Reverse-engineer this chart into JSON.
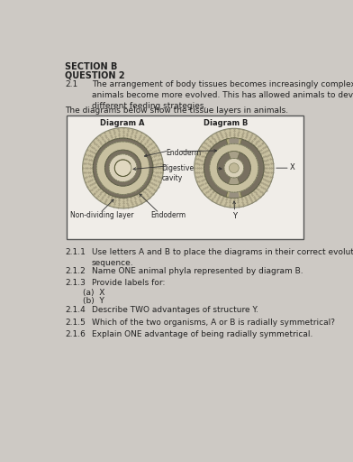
{
  "bg_color": "#cdc9c4",
  "box_color": "#f0ede8",
  "title_section": "SECTION B",
  "title_question": "QUESTION 2",
  "q21_num": "2.1",
  "q21_text": "The arrangement of body tissues becomes increasingly complex as\nanimals become more evolved. This has allowed animals to develop\ndifferent feeding strategies.",
  "q21_sub": "The diagrams below show the tissue layers in animals.",
  "diag_A_label": "Diagram A",
  "diag_B_label": "Diagram B",
  "label_endoderm_top": "Endoderm",
  "label_digestive": "Digestive\ncavity",
  "label_non_dividing": "Non-dividing layer",
  "label_endoderm_bot": "Endoderm",
  "label_X": "X",
  "label_Y": "Y",
  "questions": [
    [
      "2.1.1",
      "Use letters A and B to place the diagrams in their correct evolutionary\nsequence."
    ],
    [
      "2.1.2",
      "Name ONE animal phyla represented by diagram B."
    ],
    [
      "2.1.3",
      "Provide labels for:"
    ],
    [
      "(a)",
      "X"
    ],
    [
      "(b)",
      "Y"
    ],
    [
      "2.1.4",
      "Describe TWO advantages of structure Y."
    ],
    [
      "2.1.5",
      "Which of the two organisms, A or B is radially symmetrical?"
    ],
    [
      "2.1.6",
      "Explain ONE advantage of being radially symmetrical."
    ]
  ],
  "outer_fill": "#c8bfa0",
  "mid_fill": "#a89870",
  "inner_dotted_fill": "#d4c8a0",
  "dark_band": "#787060",
  "lighter_inner": "#c0b888",
  "center_white": "#e8e0d0",
  "gray_fill_B": "#a0988080"
}
